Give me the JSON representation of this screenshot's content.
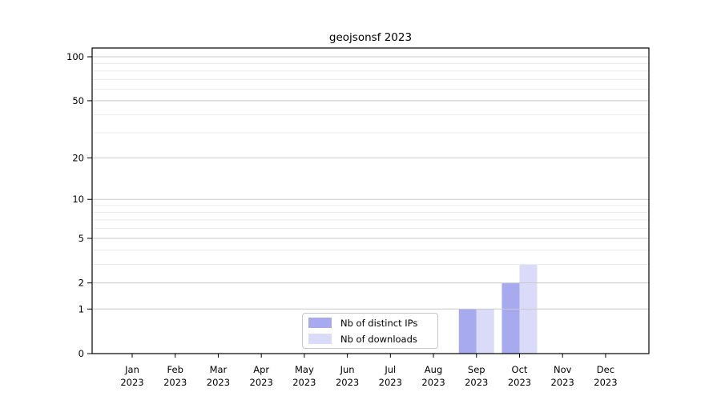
{
  "chart_data": {
    "type": "bar",
    "title": "geojsonsf 2023",
    "year": "2023",
    "months": [
      "Jan",
      "Feb",
      "Mar",
      "Apr",
      "May",
      "Jun",
      "Jul",
      "Aug",
      "Sep",
      "Oct",
      "Nov",
      "Dec"
    ],
    "categories": [
      "Jan 2023",
      "Feb 2023",
      "Mar 2023",
      "Apr 2023",
      "May 2023",
      "Jun 2023",
      "Jul 2023",
      "Aug 2023",
      "Sep 2023",
      "Oct 2023",
      "Nov 2023",
      "Dec 2023"
    ],
    "series": [
      {
        "name": "Nb of distinct IPs",
        "color": "#a8aaf0",
        "values": [
          0,
          0,
          0,
          0,
          0,
          0,
          0,
          0,
          1,
          2,
          0,
          0
        ]
      },
      {
        "name": "Nb of downloads",
        "color": "#d9dbf8",
        "values": [
          0,
          0,
          0,
          0,
          0,
          0,
          0,
          0,
          1,
          3,
          0,
          0
        ]
      }
    ],
    "y_axis": {
      "scale": "log1p",
      "tick_labels": [
        100,
        50,
        20,
        10,
        5,
        2,
        1,
        0
      ],
      "minor_gridlines": [
        3,
        4,
        6,
        7,
        8,
        9,
        30,
        40,
        60,
        70,
        80,
        90
      ],
      "ylim": [
        0,
        115
      ],
      "grid": true
    },
    "x_axis": {
      "tick_count": 12
    },
    "legend": {
      "position": "bottom-center"
    },
    "colors": {
      "frame": "#000000",
      "major_grid": "#c9c9c9",
      "minor_grid": "#ececec",
      "background": "#ffffff"
    }
  }
}
